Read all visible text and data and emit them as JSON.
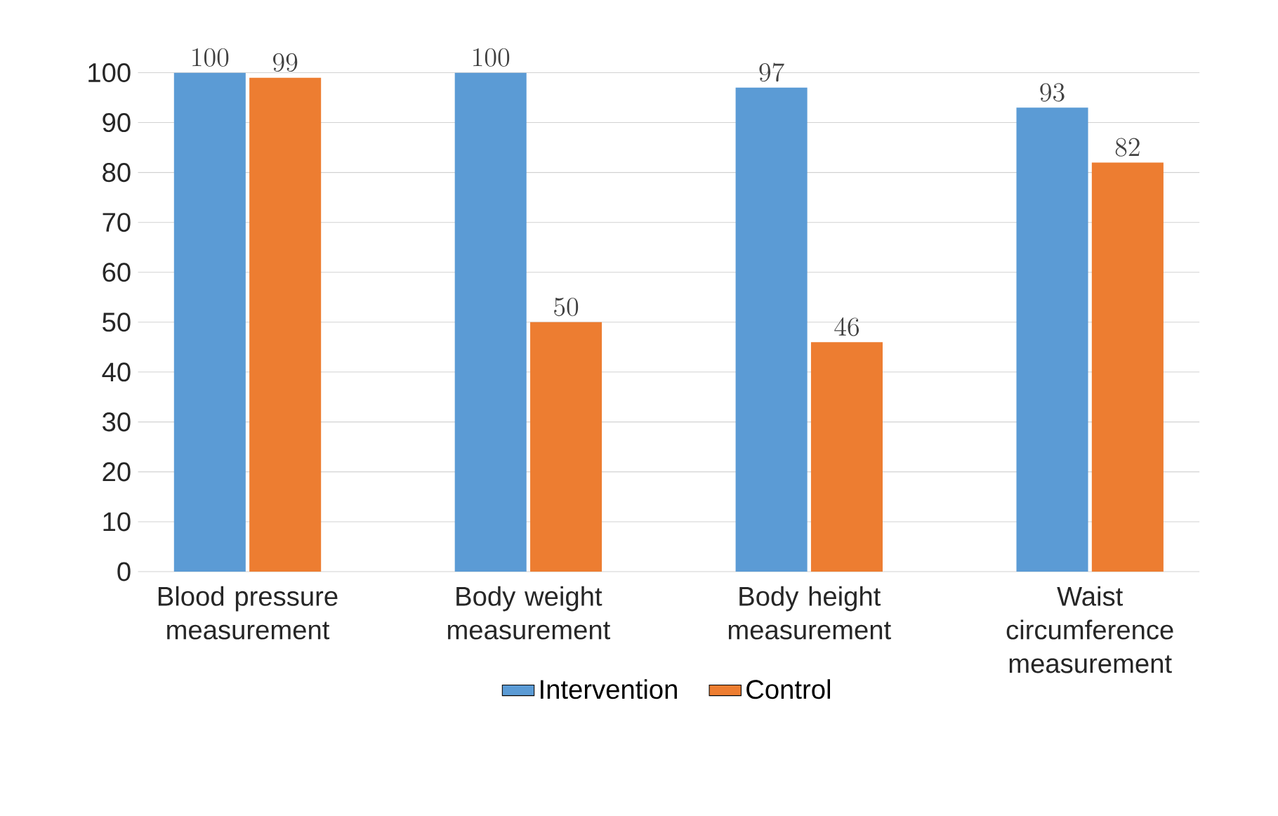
{
  "chart_data": {
    "type": "bar",
    "categories": [
      "Blood pressure measurement",
      "Body weight measurement",
      "Body height measurement",
      "Waist circumference measurement"
    ],
    "series": [
      {
        "name": "Intervention",
        "color": "#5b9bd5",
        "values": [
          100,
          100,
          97,
          93
        ]
      },
      {
        "name": "Control",
        "color": "#ed7d31",
        "values": [
          99,
          50,
          46,
          82
        ]
      }
    ],
    "ylim": [
      0,
      100
    ],
    "yticks": [
      0,
      10,
      20,
      30,
      40,
      50,
      60,
      70,
      80,
      90,
      100
    ],
    "grid": "y",
    "legend": "bottom",
    "data_labels": true
  }
}
